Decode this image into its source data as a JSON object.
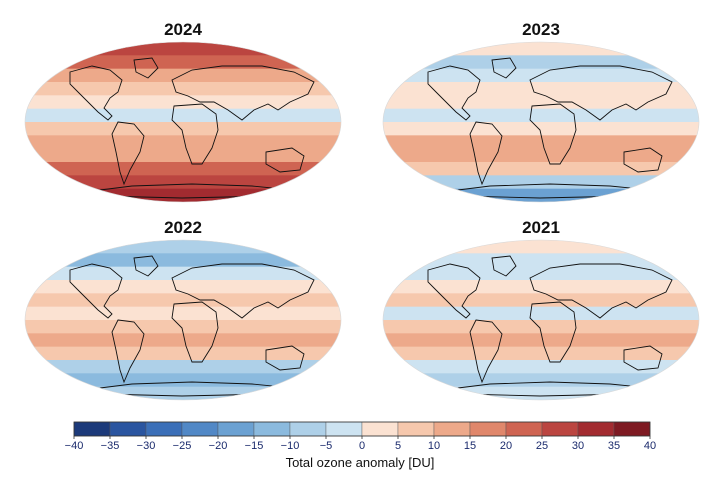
{
  "panels": [
    {
      "year": "2024",
      "bands": [
        28,
        20,
        12,
        6,
        2,
        -4,
        6,
        10,
        14,
        22,
        28,
        34
      ]
    },
    {
      "year": "2023",
      "bands": [
        3,
        -6,
        -3,
        2,
        4,
        -2,
        4,
        10,
        12,
        8,
        -6,
        -16
      ]
    },
    {
      "year": "2022",
      "bands": [
        -8,
        -12,
        -4,
        3,
        6,
        0,
        8,
        10,
        6,
        -6,
        -12,
        -6
      ]
    },
    {
      "year": "2021",
      "bands": [
        4,
        -2,
        -4,
        2,
        5,
        -4,
        6,
        12,
        5,
        -4,
        -8,
        -4
      ]
    }
  ],
  "colorbar": {
    "ticks": [
      "−40",
      "−35",
      "−30",
      "−25",
      "−20",
      "−15",
      "−10",
      "−5",
      "0",
      "5",
      "10",
      "15",
      "20",
      "25",
      "30",
      "35",
      "40"
    ],
    "min": -40,
    "max": 40,
    "step": 5,
    "label": "Total ozone anomaly [DU]",
    "colors": [
      "#1c3a7a",
      "#2a55a0",
      "#3b6fb8",
      "#5188c6",
      "#6ba1d2",
      "#8bbade",
      "#aed0e8",
      "#cde3f1",
      "#fbe2d2",
      "#f6c8ad",
      "#eda98a",
      "#e0876b",
      "#cf6452",
      "#bb4540",
      "#a22b30",
      "#7e1a22"
    ]
  }
}
